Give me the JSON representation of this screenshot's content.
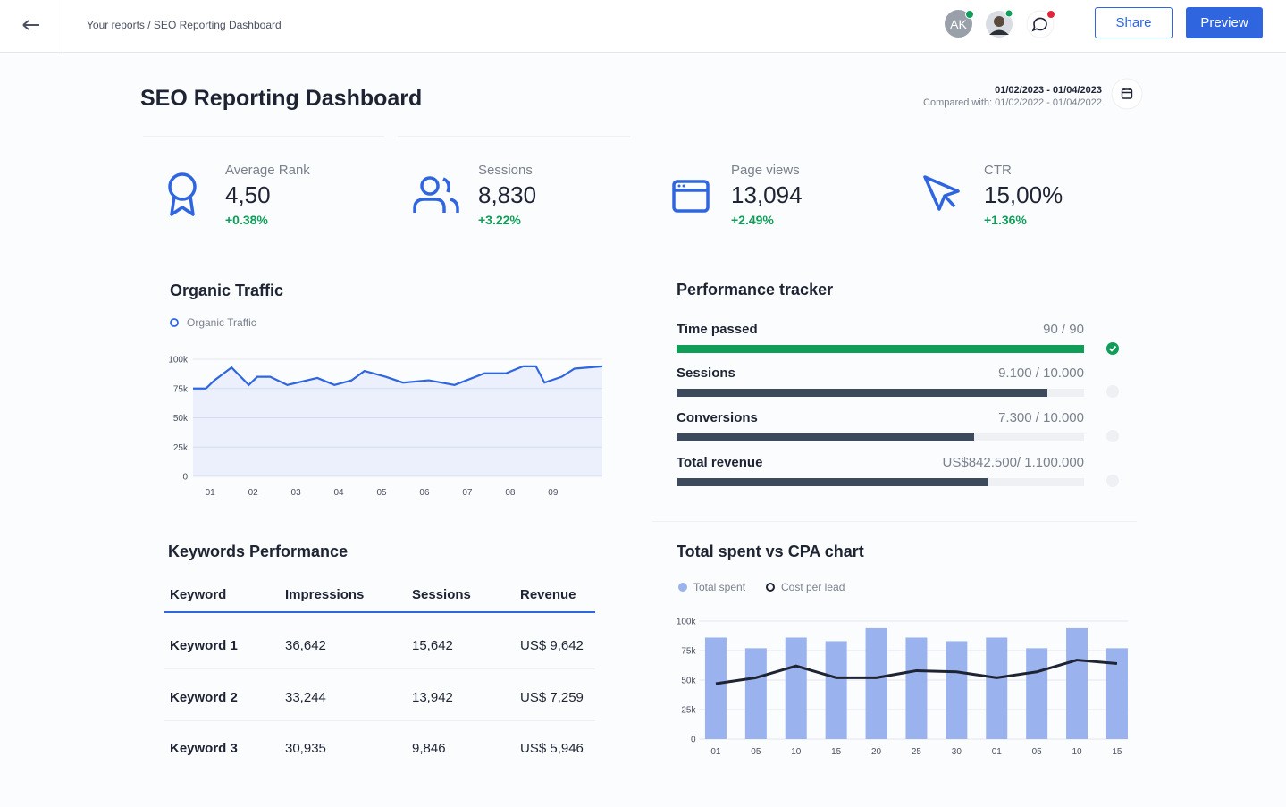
{
  "header": {
    "breadcrumb": "Your reports / SEO Reporting Dashboard",
    "avatar": "AK",
    "share": "Share",
    "preview": "Preview"
  },
  "title": "SEO Reporting Dashboard",
  "date_range": "01/02/2023 - 01/04/2023",
  "compared": "Compared with: 01/02/2022 - 01/04/2022",
  "kpis": [
    {
      "label": "Average Rank",
      "value": "4,50",
      "change": "+0.38%"
    },
    {
      "label": "Sessions",
      "value": "8,830",
      "change": "+3.22%"
    },
    {
      "label": "Page views",
      "value": "13,094",
      "change": "+2.49%"
    },
    {
      "label": "CTR",
      "value": "15,00%",
      "change": "+1.36%"
    }
  ],
  "chart_data": [
    {
      "type": "area",
      "title": "Organic Traffic",
      "series": [
        {
          "name": "Organic Traffic",
          "color": "#2f66e0",
          "x": [
            0.6,
            0.9,
            1.1,
            1.5,
            1.9,
            2.1,
            2.4,
            2.8,
            3.5,
            3.9,
            4.3,
            4.6,
            5.1,
            5.5,
            6.1,
            6.7,
            7.4,
            7.9,
            8.3,
            8.6,
            8.8,
            9.2,
            9.5,
            10.15
          ],
          "values": [
            75000,
            75000,
            82000,
            93000,
            78000,
            85000,
            85000,
            78000,
            84000,
            78000,
            82000,
            90000,
            85000,
            80000,
            82000,
            78000,
            88000,
            88000,
            94000,
            94000,
            80000,
            85000,
            92000,
            94000
          ]
        }
      ],
      "xlim": [
        0.6,
        10.15
      ],
      "xticks": [
        {
          "value": 1,
          "label": "01"
        },
        {
          "value": 2,
          "label": "02"
        },
        {
          "value": 3,
          "label": "03"
        },
        {
          "value": 4,
          "label": "04"
        },
        {
          "value": 5,
          "label": "05"
        },
        {
          "value": 6,
          "label": "06"
        },
        {
          "value": 7,
          "label": "07"
        },
        {
          "value": 8,
          "label": "08"
        },
        {
          "value": 9,
          "label": "09"
        }
      ],
      "ylim": [
        0,
        100000
      ],
      "yticks": [
        0,
        {
          "value": 25000,
          "label": "25k"
        },
        {
          "value": 50000,
          "label": "50k"
        },
        {
          "value": 75000,
          "label": "75k"
        },
        {
          "value": 100000,
          "label": "100k"
        }
      ],
      "grid": true
    },
    {
      "type": "bar",
      "title": "Total spent vs CPA chart",
      "categories": [
        "01",
        "05",
        "10",
        "15",
        "20",
        "25",
        "30",
        "01",
        "05",
        "10",
        "15"
      ],
      "series": [
        {
          "name": "Total spent",
          "type": "bar",
          "color": "#9ab3ef",
          "values": [
            86000,
            77000,
            86000,
            83000,
            94000,
            86000,
            83000,
            86000,
            77000,
            94000,
            77000
          ]
        },
        {
          "name": "Cost per lead",
          "type": "line",
          "color": "#1e2433",
          "values": [
            47000,
            52000,
            62000,
            52000,
            52000,
            58000,
            57000,
            52000,
            57000,
            67000,
            64000
          ]
        }
      ],
      "ylim": [
        0,
        100000
      ],
      "yticks": [
        0,
        {
          "value": 25000,
          "label": "25k"
        },
        {
          "value": 50000,
          "label": "50k"
        },
        {
          "value": 75000,
          "label": "75k"
        },
        {
          "value": 100000,
          "label": "100k"
        }
      ],
      "grid": true
    }
  ],
  "tracker": {
    "title": "Performance tracker",
    "rows": [
      {
        "name": "Time passed",
        "label": "90 / 90",
        "value": 90,
        "target": 90,
        "color": "#0f9d58"
      },
      {
        "name": "Sessions",
        "label": "9.100 / 10.000",
        "value": 9100,
        "target": 10000,
        "color": "#3d4a5c"
      },
      {
        "name": "Conversions",
        "label": "7.300 / 10.000",
        "value": 7300,
        "target": 10000,
        "color": "#3d4a5c"
      },
      {
        "name": "Total revenue",
        "label": "US$842.500/ 1.100.000",
        "value": 842500,
        "target": 1100000,
        "color": "#3d4a5c"
      }
    ]
  },
  "keywords": {
    "title": "Keywords Performance",
    "columns": [
      "Keyword",
      "Impressions",
      "Sessions",
      "Revenue"
    ],
    "rows": [
      [
        "Keyword 1",
        "36,642",
        "15,642",
        "US$ 9,642"
      ],
      [
        "Keyword 2",
        "33,244",
        "13,942",
        "US$ 7,259"
      ],
      [
        "Keyword 3",
        "30,935",
        "9,846",
        "US$ 5,946"
      ]
    ]
  }
}
